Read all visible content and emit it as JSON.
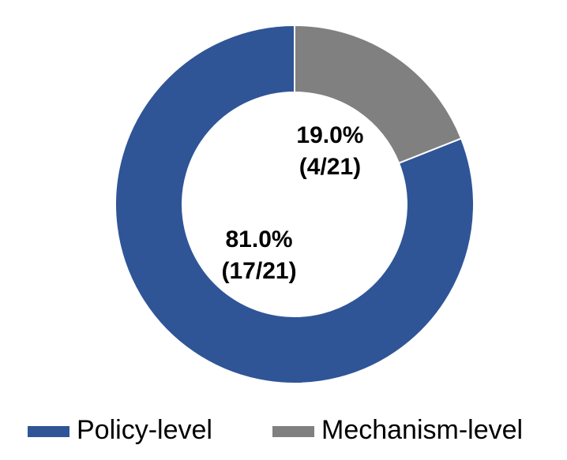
{
  "chart_data": {
    "type": "pie",
    "categories": [
      "Policy-level",
      "Mechanism-level"
    ],
    "values": [
      81.0,
      19.0
    ],
    "value_labels": [
      "81.0%",
      "19.0%"
    ],
    "fraction_labels": [
      "(17/21)",
      "(4/21)"
    ],
    "colors": [
      "#2f5597",
      "#808080"
    ],
    "donut": true,
    "legend": "bottom"
  }
}
